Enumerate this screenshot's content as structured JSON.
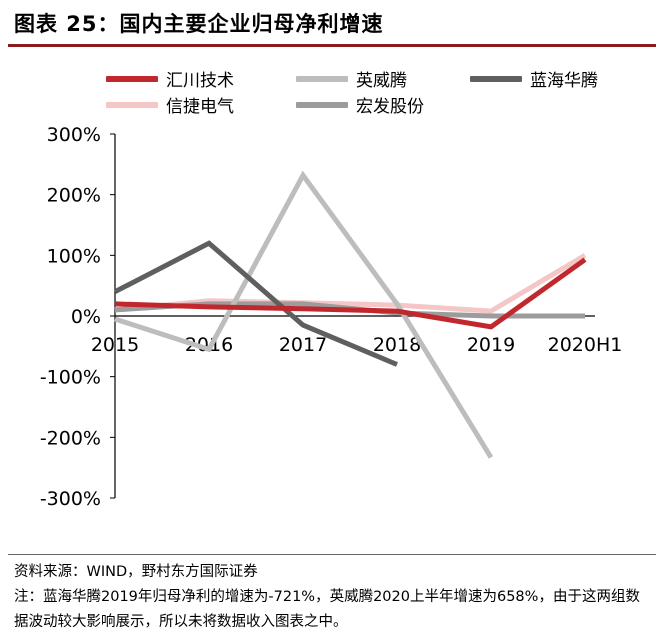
{
  "header": {
    "title": "图表 25：国内主要企业归母净利增速"
  },
  "legend": {
    "items": [
      {
        "name": "汇川技术",
        "color": "#c0282d"
      },
      {
        "name": "英威腾",
        "color": "#bdbdbd"
      },
      {
        "name": "蓝海华腾",
        "color": "#5f5f5f"
      },
      {
        "name": "信捷电气",
        "color": "#f4c6c6"
      },
      {
        "name": "宏发股份",
        "color": "#9c9c9c"
      }
    ]
  },
  "chart_data": {
    "type": "line",
    "title": "",
    "xlabel": "",
    "ylabel": "",
    "categories": [
      "2015",
      "2016",
      "2017",
      "2018",
      "2019",
      "2020H1"
    ],
    "ylim": [
      -300,
      300
    ],
    "yticks": [
      300,
      200,
      100,
      0,
      -100,
      -200,
      -300
    ],
    "ytick_labels": [
      "300%",
      "200%",
      "100%",
      "0%",
      "-100%",
      "-200%",
      "-300%"
    ],
    "legend_position": "top",
    "grid": false,
    "series": [
      {
        "name": "信捷电气",
        "color": "#f4c6c6",
        "values": [
          10,
          25,
          22,
          18,
          8,
          100
        ]
      },
      {
        "name": "宏发股份",
        "color": "#9c9c9c",
        "values": [
          10,
          20,
          20,
          5,
          0,
          0
        ]
      },
      {
        "name": "英威腾",
        "color": "#bdbdbd",
        "values": [
          -5,
          -55,
          232,
          20,
          -233,
          null
        ]
      },
      {
        "name": "蓝海华腾",
        "color": "#5f5f5f",
        "values": [
          40,
          120,
          -15,
          -80,
          null,
          null
        ]
      },
      {
        "name": "汇川技术",
        "color": "#c0282d",
        "values": [
          20,
          15,
          12,
          8,
          -18,
          93
        ]
      }
    ]
  },
  "footer": {
    "source": "资料来源：WIND，野村东方国际证券",
    "note": "注：蓝海华腾2019年归母净利的增速为-721%，英威腾2020上半年增速为658%，由于这两组数据波动较大影响展示，所以未将数据收入图表之中。"
  }
}
